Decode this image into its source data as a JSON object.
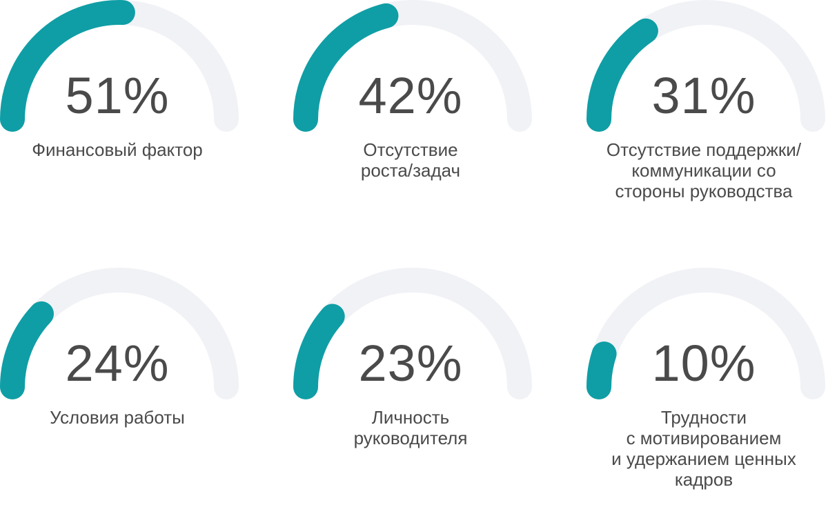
{
  "chart_data": {
    "type": "gauge",
    "colors": {
      "fill": "#0f9ea5",
      "track": "#f1f2f6",
      "text": "#4a4a4a"
    },
    "items": [
      {
        "value": 51,
        "value_label": "51%",
        "label": "Финансовый фактор"
      },
      {
        "value": 42,
        "value_label": "42%",
        "label": "Отсутствие\nроста/задач"
      },
      {
        "value": 31,
        "value_label": "31%",
        "label": "Отсутствие поддержки/\nкоммуникации со\nстороны руководства"
      },
      {
        "value": 24,
        "value_label": "24%",
        "label": "Условия работы"
      },
      {
        "value": 23,
        "value_label": "23%",
        "label": "Личность\nруководителя"
      },
      {
        "value": 10,
        "value_label": "10%",
        "label": "Трудности\nс мотивированием\nи удержанием ценных\nкадров"
      }
    ]
  }
}
